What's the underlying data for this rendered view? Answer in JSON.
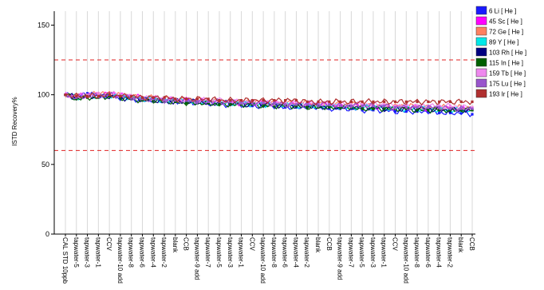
{
  "chart_data": {
    "type": "scatter",
    "title": "",
    "xlabel": "",
    "ylabel": "ISTD Recovery%",
    "ylim": [
      0,
      160
    ],
    "yticks": [
      0,
      50,
      100,
      150
    ],
    "grid": "vertical",
    "legend_position": "top-right",
    "reference_lines": [
      {
        "y": 125,
        "color": "#e02020",
        "style": "dashed"
      },
      {
        "y": 60,
        "color": "#e02020",
        "style": "dashed"
      }
    ],
    "categories": [
      "CAL STD 10ppb",
      "tapwater-5",
      "tapwater-3",
      "tapwater-1",
      "CCV",
      "tapwater-10 add",
      "tapwater-8",
      "tapwater-6",
      "tapwater-4",
      "tapwater-2",
      "blank",
      "CCB",
      "tapwater-9 add",
      "tapwater-7",
      "tapwater-5",
      "tapwater-3",
      "tapwater-1",
      "CCV",
      "tapwater-10 add",
      "tapwater-8",
      "tapwater-6",
      "tapwater-4",
      "tapwater-2",
      "blank",
      "CCB",
      "tapwater-9 add",
      "tapwater-7",
      "tapwater-5",
      "tapwater-3",
      "tapwater-1",
      "CCV",
      "tapwater-10 add",
      "tapwater-8",
      "tapwater-6",
      "tapwater-4",
      "tapwater-2",
      "blank",
      "CCB"
    ],
    "series": [
      {
        "name": "6 Li [ He ]",
        "color": "#1a1aff",
        "values": [
          100,
          98,
          101,
          100,
          99,
          98,
          97,
          96,
          96,
          95,
          95,
          95,
          94,
          94,
          93,
          93,
          93,
          92,
          92,
          92,
          91,
          91,
          91,
          91,
          90,
          90,
          90,
          89,
          89,
          89,
          88,
          88,
          88,
          88,
          87,
          87,
          87,
          86
        ]
      },
      {
        "name": "45 Sc [ He ]",
        "color": "#ff00ff",
        "values": [
          100,
          99,
          100,
          100,
          101,
          100,
          99,
          98,
          97,
          97,
          96,
          96,
          96,
          95,
          95,
          95,
          94,
          94,
          94,
          94,
          93,
          93,
          93,
          93,
          93,
          92,
          92,
          92,
          92,
          91,
          91,
          91,
          91,
          90,
          90,
          90,
          90,
          90
        ]
      },
      {
        "name": "72 Ge [ He ]",
        "color": "#ff8060",
        "values": [
          100,
          99,
          100,
          101,
          101,
          100,
          99,
          98,
          98,
          97,
          97,
          96,
          96,
          96,
          95,
          95,
          95,
          95,
          94,
          94,
          94,
          94,
          94,
          93,
          93,
          93,
          93,
          93,
          92,
          92,
          92,
          92,
          92,
          91,
          91,
          91,
          91,
          91
        ]
      },
      {
        "name": "89 Y [ He ]",
        "color": "#00e8e8",
        "values": [
          100,
          98,
          99,
          99,
          100,
          99,
          98,
          97,
          97,
          96,
          96,
          95,
          95,
          95,
          94,
          94,
          94,
          93,
          93,
          93,
          93,
          92,
          92,
          92,
          92,
          91,
          91,
          91,
          91,
          91,
          90,
          90,
          90,
          90,
          89,
          89,
          89,
          89
        ]
      },
      {
        "name": "103 Rh [ He ]",
        "color": "#000080",
        "values": [
          100,
          98,
          99,
          99,
          99,
          98,
          97,
          97,
          96,
          96,
          95,
          95,
          95,
          94,
          94,
          94,
          93,
          93,
          93,
          93,
          92,
          92,
          92,
          92,
          91,
          91,
          91,
          91,
          91,
          90,
          90,
          90,
          90,
          90,
          89,
          89,
          89,
          89
        ]
      },
      {
        "name": "115 In [ He ]",
        "color": "#006000",
        "values": [
          100,
          97,
          98,
          98,
          99,
          98,
          97,
          96,
          96,
          95,
          95,
          94,
          94,
          94,
          93,
          93,
          93,
          93,
          92,
          92,
          92,
          92,
          91,
          91,
          91,
          91,
          91,
          90,
          90,
          90,
          90,
          90,
          89,
          89,
          89,
          89,
          89,
          89
        ]
      },
      {
        "name": "159 Tb [ He ]",
        "color": "#ee88ee",
        "values": [
          100,
          99,
          100,
          100,
          101,
          100,
          99,
          98,
          98,
          97,
          97,
          96,
          96,
          96,
          96,
          95,
          95,
          95,
          95,
          94,
          94,
          94,
          94,
          94,
          93,
          93,
          93,
          93,
          93,
          93,
          92,
          92,
          92,
          92,
          92,
          92,
          91,
          91
        ]
      },
      {
        "name": "175 Lu [ He ]",
        "color": "#9955cc",
        "values": [
          100,
          98,
          99,
          99,
          100,
          99,
          98,
          97,
          97,
          96,
          96,
          96,
          95,
          95,
          95,
          95,
          94,
          94,
          94,
          94,
          93,
          93,
          93,
          93,
          93,
          92,
          92,
          92,
          92,
          92,
          91,
          91,
          91,
          91,
          91,
          90,
          90,
          90
        ]
      },
      {
        "name": "193 Ir [ He ]",
        "color": "#b03030",
        "values": [
          100,
          99,
          99,
          99,
          100,
          99,
          99,
          98,
          98,
          98,
          97,
          97,
          97,
          97,
          96,
          96,
          96,
          96,
          96,
          96,
          96,
          96,
          95,
          95,
          95,
          95,
          95,
          95,
          95,
          95,
          95,
          95,
          95,
          95,
          95,
          95,
          95,
          95
        ]
      }
    ]
  }
}
